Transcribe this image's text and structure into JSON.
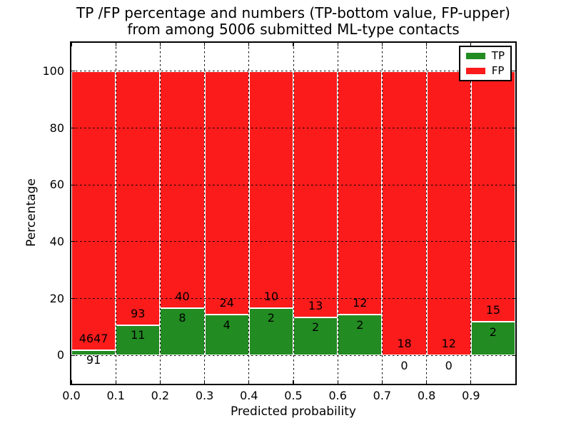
{
  "chart_data": {
    "type": "bar",
    "stacked": true,
    "title_line1": "TP /FP percentage and numbers (TP-bottom value, FP-upper)",
    "title_line2": "from among 5006 submitted ML-type contacts",
    "xlabel": "Predicted probability",
    "ylabel": "Percentage",
    "xlim": [
      0.0,
      1.0
    ],
    "ylim": [
      -10,
      110
    ],
    "yticks": [
      0,
      20,
      40,
      60,
      80,
      100
    ],
    "xtick_labels": [
      "0.0",
      "0.1",
      "0.2",
      "0.3",
      "0.4",
      "0.5",
      "0.6",
      "0.7",
      "0.8",
      "0.9"
    ],
    "bin_width": 0.1,
    "grid": "dotted",
    "legend_position": "upper-right",
    "legend": [
      {
        "label": "TP",
        "color": "#228B22"
      },
      {
        "label": "FP",
        "color": "#FB1B1B"
      }
    ],
    "series": [
      {
        "name": "TP",
        "values": [
          91,
          11,
          8,
          4,
          2,
          2,
          2,
          0,
          0,
          2
        ]
      },
      {
        "name": "FP",
        "values": [
          4647,
          93,
          40,
          24,
          10,
          13,
          12,
          18,
          12,
          15
        ]
      }
    ],
    "tp_percent_per_bin": [
      1.92,
      10.58,
      16.67,
      14.29,
      16.67,
      13.33,
      14.29,
      0.0,
      0.0,
      11.76
    ],
    "bar_top_percent": 100,
    "total_submitted": 5006
  }
}
